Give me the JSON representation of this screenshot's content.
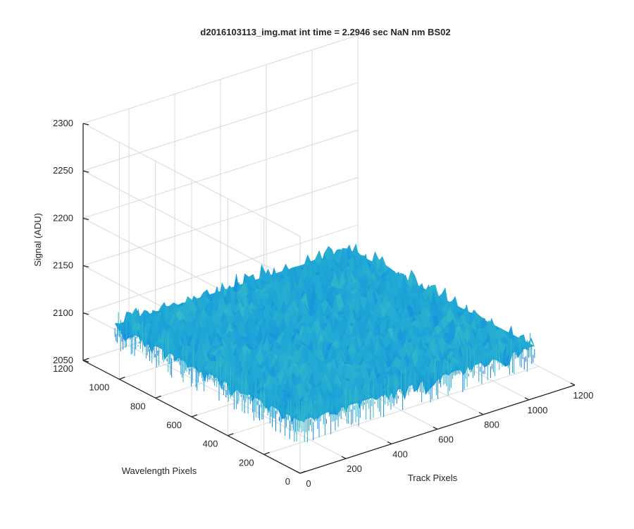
{
  "chart_data": {
    "type": "surface",
    "title": "d2016103113_img.mat int time = 2.2946 sec  NaN nm BS02",
    "xlabel": "Track Pixels",
    "ylabel": "Wavelength Pixels",
    "zlabel": "Signal (ADU)",
    "xlim": [
      0,
      1200
    ],
    "ylim": [
      0,
      1200
    ],
    "zlim": [
      2050,
      2300
    ],
    "x_ticks": [
      "0",
      "200",
      "400",
      "600",
      "800",
      "1000",
      "1200"
    ],
    "y_ticks": [
      "0",
      "200",
      "400",
      "600",
      "800",
      "1000",
      "1200"
    ],
    "z_ticks": [
      "2050",
      "2100",
      "2150",
      "2200",
      "2250",
      "2300"
    ],
    "surface": {
      "x_extent": [
        0,
        1024
      ],
      "y_extent": [
        0,
        1024
      ],
      "mean_signal": 2105,
      "noise_range": [
        2085,
        2125
      ],
      "colormap": "parula",
      "dominant_color": "#1fa6d6"
    },
    "grid": true
  }
}
